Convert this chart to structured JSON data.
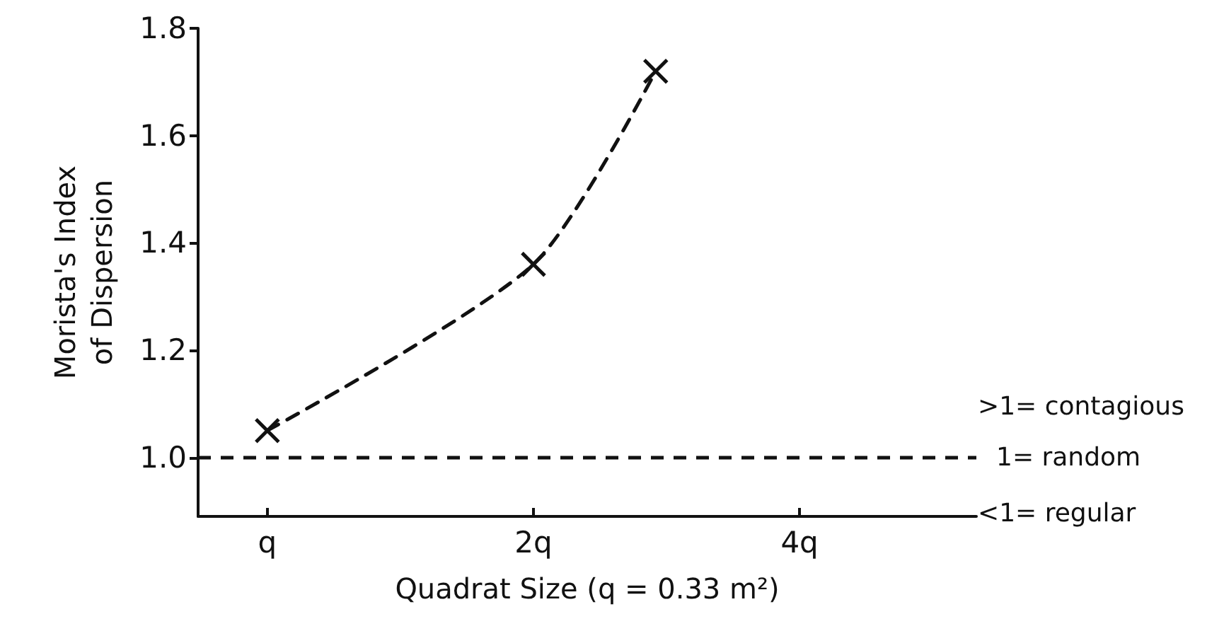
{
  "chart_data": {
    "type": "line",
    "xlabel": "Quadrat Size (q = 0.33 m²)",
    "ylabel": "Morista's Index\nof Dispersion",
    "x": [
      1,
      2,
      2.75
    ],
    "series": [
      {
        "color": "#111111",
        "values": [
          1.05,
          1.36,
          1.72
        ]
      }
    ],
    "log": "x",
    "xlim": [
      0.835,
      6.34
    ],
    "xticks": [
      {
        "value": 1,
        "label": "q"
      },
      {
        "value": 2,
        "label": "2q"
      },
      {
        "value": 4,
        "label": "4q"
      }
    ],
    "ylim": [
      0.89,
      1.8
    ],
    "yticks": [
      {
        "value": 1,
        "label": "1.0"
      },
      1.2,
      1.4,
      1.6,
      1.8
    ],
    "ref_lines": [
      {
        "axis": "y",
        "value": 1,
        "label": "1= random",
        "color": "#111111",
        "line_style": "dashed"
      }
    ],
    "annotations": [
      ">1= contagious",
      "<1= regular"
    ],
    "marker": "cross",
    "line_style": "dashed",
    "grid": false
  }
}
